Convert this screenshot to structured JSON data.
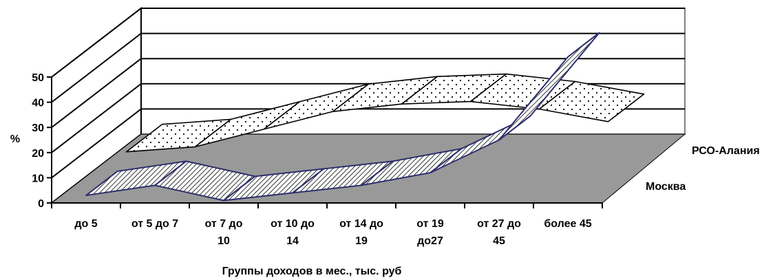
{
  "chart_data": {
    "type": "area",
    "subtype": "3d-area",
    "title": "",
    "xlabel": "Группы доходов в мес., тыс. руб",
    "ylabel": "%",
    "ylim": [
      0,
      50
    ],
    "yticks": [
      "0",
      "10",
      "20",
      "30",
      "40",
      "50"
    ],
    "categories": [
      [
        "до 5"
      ],
      [
        "от 5 до 7"
      ],
      [
        "от 7 до",
        "10"
      ],
      [
        "от 10 до",
        "14"
      ],
      [
        "от 14 до",
        "19"
      ],
      [
        "от 19",
        "до27"
      ],
      [
        "от 27 до",
        "45"
      ],
      [
        "более 45"
      ]
    ],
    "series": [
      {
        "name": "Москва",
        "values": [
          3,
          7,
          1,
          4,
          7,
          12,
          25,
          58
        ]
      },
      {
        "name": "РСО-Алания",
        "values": [
          8,
          10,
          17,
          24,
          27,
          28,
          25,
          20
        ]
      }
    ],
    "grid": true,
    "legend": "right"
  }
}
